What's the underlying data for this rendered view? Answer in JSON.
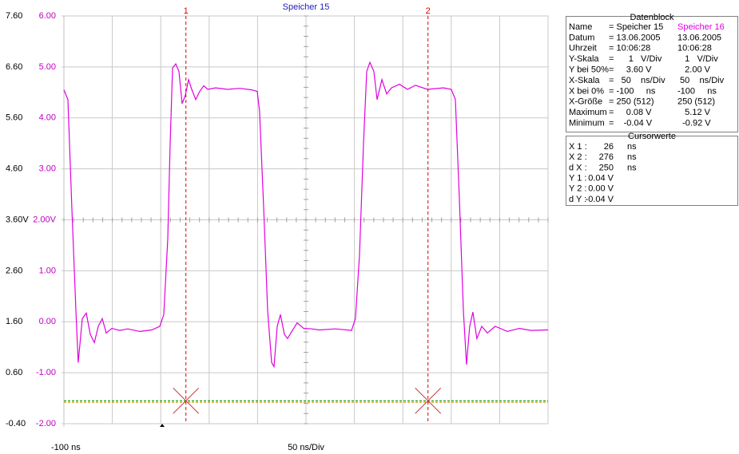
{
  "title": "Speicher 15",
  "chart_data": {
    "type": "line",
    "ylim": [
      -0.4,
      7.6
    ],
    "yticks": [
      {
        "value": 7.6,
        "label": "7.60"
      },
      {
        "value": 6.6,
        "label": "6.60"
      },
      {
        "value": 5.6,
        "label": "5.60"
      },
      {
        "value": 4.6,
        "label": "4.60"
      },
      {
        "value": 3.6,
        "label": "3.60V"
      },
      {
        "value": 2.6,
        "label": "2.60"
      },
      {
        "value": 1.6,
        "label": "1.60"
      },
      {
        "value": 0.6,
        "label": "0.60"
      },
      {
        "value": -0.4,
        "label": "-0.40"
      }
    ],
    "y2lim": [
      -2,
      6
    ],
    "y2ticks": [
      {
        "value": 6,
        "label": "6.00"
      },
      {
        "value": 5,
        "label": "5.00"
      },
      {
        "value": 4,
        "label": "4.00"
      },
      {
        "value": 3,
        "label": "3.00"
      },
      {
        "value": 2,
        "label": "2.00V"
      },
      {
        "value": 1,
        "label": "1.00"
      },
      {
        "value": 0,
        "label": "0.00"
      },
      {
        "value": -1,
        "label": "-1.00"
      },
      {
        "value": -2,
        "label": "-2.00"
      }
    ],
    "xlim": [
      -100,
      400
    ],
    "xticks": [
      {
        "value": -100,
        "label": "-100 ns"
      }
    ],
    "xgrid": [
      -50,
      0,
      50,
      100,
      150,
      200,
      250,
      300,
      350,
      400
    ],
    "x_scale_label": "50 ns/Div",
    "grid": true,
    "cursors": [
      {
        "label": "1",
        "x": 26
      },
      {
        "label": "2",
        "x": 276
      }
    ],
    "cursor_y": -1.55,
    "series": [
      {
        "color": "#e000e0",
        "axis": "y2",
        "x": [
          -100,
          -95.9,
          -91.8,
          -87.6,
          -85.2,
          -81.0,
          -76.9,
          -72.8,
          -68.6,
          -64.5,
          -60.4,
          -56.3,
          -50.5,
          -42.3,
          -34.0,
          -21.6,
          -9.3,
          -1.0,
          3.1,
          7.3,
          9.7,
          12.2,
          15.5,
          18.8,
          22.1,
          25.4,
          28.7,
          32.0,
          36.1,
          40.3,
          44.4,
          48.5,
          56.8,
          69.1,
          81.5,
          93.9,
          99.7,
          102.1,
          106.3,
          110.4,
          114.5,
          117.0,
          120.3,
          123.6,
          127.7,
          131.0,
          136.0,
          140.9,
          147.5,
          155.8,
          164.0,
          180.5,
          197.0,
          201.1,
          205.3,
          209.4,
          212.7,
          216.0,
          220.1,
          223.4,
          228.4,
          233.3,
          238.3,
          246.5,
          254.8,
          263.0,
          275.4,
          291.9,
          300.1,
          304.3,
          308.4,
          312.5,
          315.8,
          319.1,
          322.4,
          326.5,
          331.5,
          337.3,
          345.5,
          357.9,
          370.3,
          382.6,
          400.0
        ],
        "values": [
          4.55,
          4.36,
          2.25,
          0.22,
          -0.8,
          0.06,
          0.17,
          -0.25,
          -0.41,
          -0.09,
          0.06,
          -0.22,
          -0.13,
          -0.17,
          -0.14,
          -0.19,
          -0.16,
          -0.09,
          0.14,
          1.63,
          3.5,
          4.98,
          5.06,
          4.91,
          4.28,
          4.44,
          4.75,
          4.56,
          4.36,
          4.52,
          4.63,
          4.56,
          4.59,
          4.56,
          4.58,
          4.55,
          4.52,
          4.13,
          2.25,
          0.22,
          -0.8,
          -0.88,
          -0.09,
          0.14,
          -0.25,
          -0.33,
          -0.17,
          -0.02,
          -0.13,
          -0.14,
          -0.16,
          -0.14,
          -0.17,
          0.06,
          1.31,
          3.5,
          4.91,
          5.09,
          4.91,
          4.36,
          4.75,
          4.47,
          4.59,
          4.66,
          4.56,
          4.64,
          4.56,
          4.59,
          4.56,
          4.36,
          2.41,
          0.22,
          -0.84,
          -0.09,
          0.19,
          -0.33,
          -0.09,
          -0.22,
          -0.09,
          -0.19,
          -0.13,
          -0.17,
          -0.16
        ]
      },
      {
        "color": "#d09000",
        "axis": "y2",
        "x": [
          -100,
          400
        ],
        "values": [
          -1.58,
          -1.58
        ]
      },
      {
        "color": "#00a000",
        "axis": "y2",
        "x": [
          -100,
          400
        ],
        "values": [
          -1.55,
          -1.55
        ]
      }
    ]
  },
  "datenblock": {
    "title": "Datenblock",
    "rows": [
      [
        "Name",
        "= Speicher 15",
        "Speicher 16"
      ],
      [
        "Datum",
        "= 13.06.2005",
        "13.06.2005"
      ],
      [
        "Uhrzeit",
        "= 10:06:28",
        "10:06:28"
      ],
      [
        "Y-Skala",
        "=      1   V/Div",
        "   1   V/Div"
      ],
      [
        "Y bei 50%",
        "=     3.60 V",
        "   2.00 V"
      ],
      [
        "X-Skala",
        "=   50    ns/Div",
        " 50    ns/Div"
      ],
      [
        "X bei 0%",
        "= -100     ns",
        "-100     ns"
      ],
      [
        "X-Größe",
        "= 250 (512)",
        "250 (512)"
      ],
      [
        "Maximum",
        "=     0.08 V",
        "   5.12 V"
      ],
      [
        "Minimum",
        "=    -0.04 V",
        "  -0.92 V"
      ]
    ]
  },
  "cursorwerte": {
    "title": "Cursorwerte",
    "rows": [
      [
        "X 1 :",
        "26",
        "ns"
      ],
      [
        "X 2 :",
        "276",
        "ns"
      ],
      [
        "d X :",
        "250",
        "ns"
      ],
      [
        "Y 1 :",
        "0.04 V",
        ""
      ],
      [
        "Y 2 :",
        "0.00 V",
        ""
      ],
      [
        "d Y :",
        "-0.04 V",
        ""
      ]
    ]
  }
}
